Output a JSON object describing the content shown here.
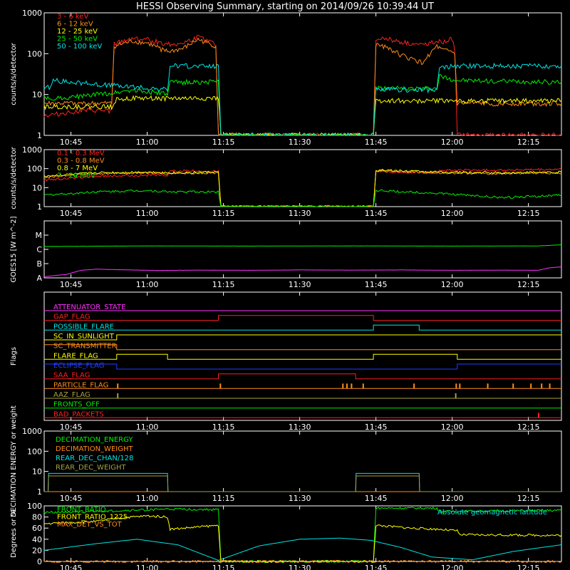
{
  "title": "HESSI Observing Summary, starting on 2014/09/26 10:39:44 UT",
  "time_ticks": [
    "10:45",
    "11:00",
    "11:15",
    "11:30",
    "11:45",
    "12:00",
    "12:15"
  ],
  "time_tick_minutes": [
    45,
    60,
    75,
    90,
    105,
    120,
    135
  ],
  "x_range_minutes": [
    39.73,
    141.5
  ],
  "colors": {
    "red": "#ff2020",
    "orange": "#ff8c1a",
    "yellow": "#ffff00",
    "green": "#00ee00",
    "cyan": "#00e5e5",
    "magenta": "#ff30ff",
    "blue": "#2040ff",
    "olive": "#a8a040",
    "white": "#ffffff"
  },
  "chart_data": [
    {
      "type": "line",
      "panel": "count_rates_low",
      "ylabel": "counts/s/detector",
      "y_scale": "log",
      "ylim": [
        1,
        1000
      ],
      "y_ticks": [
        "1",
        "10",
        "100",
        "1000"
      ],
      "legend_placement": "top-left",
      "series": [
        {
          "name": "3 - 6 keV",
          "color": "#ff2020",
          "x": [
            39.7,
            47,
            53,
            53.5,
            57,
            60,
            64,
            67,
            70,
            73.5,
            74,
            104.5,
            105,
            107,
            110,
            114,
            117,
            118,
            120,
            120.5,
            121,
            141.5
          ],
          "y": [
            3,
            4,
            4,
            170,
            240,
            220,
            170,
            180,
            250,
            170,
            1,
            1,
            220,
            240,
            190,
            160,
            210,
            180,
            230,
            120,
            1,
            1
          ]
        },
        {
          "name": "6 - 12 keV",
          "color": "#ff8c1a",
          "x": [
            39.7,
            47,
            53,
            53.5,
            57,
            60,
            64,
            67,
            70,
            73.5,
            74,
            104.5,
            105,
            107,
            110,
            114,
            117,
            118,
            120,
            120.5,
            121,
            141.5
          ],
          "y": [
            6,
            6,
            6,
            150,
            200,
            180,
            110,
            130,
            220,
            150,
            1,
            1,
            160,
            150,
            90,
            60,
            150,
            120,
            110,
            100,
            6,
            6
          ]
        },
        {
          "name": "12 - 25 keV",
          "color": "#ffff00",
          "x": [
            39.7,
            53,
            54,
            64,
            74,
            74.5,
            104.5,
            105,
            118,
            121,
            141.5
          ],
          "y": [
            5,
            5,
            8,
            8,
            8,
            1,
            1,
            7,
            7,
            7,
            7
          ]
        },
        {
          "name": "25 - 50 keV",
          "color": "#00ee00",
          "x": [
            39.7,
            47,
            53,
            57,
            62,
            64,
            64.5,
            74,
            74.5,
            104.5,
            105,
            112,
            117,
            117.5,
            121,
            141.5
          ],
          "y": [
            8,
            9,
            11,
            13,
            11,
            10,
            20,
            20,
            1,
            1,
            14,
            14,
            14,
            28,
            22,
            20
          ]
        },
        {
          "name": "50 - 100 keV",
          "color": "#00e5e5",
          "x": [
            39.7,
            41,
            41.5,
            64,
            64.5,
            74,
            74.5,
            104.5,
            105,
            117,
            117.5,
            121,
            141.5
          ],
          "y": [
            15,
            15,
            22,
            13,
            50,
            50,
            1,
            1,
            13,
            13,
            45,
            50,
            50
          ]
        }
      ]
    },
    {
      "type": "line",
      "panel": "count_rates_high",
      "ylabel": "counts/s/detector",
      "y_scale": "log",
      "ylim": [
        1,
        1000
      ],
      "y_ticks": [
        "1",
        "10",
        "100",
        "1000"
      ],
      "legend_placement": "top-left",
      "series": [
        {
          "name": "0.1 - 0.3 MeV",
          "color": "#ff2020",
          "x": [
            39.7,
            50,
            60,
            64,
            64.5,
            74,
            74.5,
            104.5,
            105,
            117,
            117.5,
            130,
            141.5
          ],
          "y": [
            25,
            40,
            45,
            45,
            75,
            75,
            1,
            1,
            70,
            60,
            80,
            85,
            90
          ]
        },
        {
          "name": "0.3 - 0.8 MeV",
          "color": "#ff8c1a",
          "x": [
            39.7,
            50,
            60,
            64,
            74,
            74.5,
            104.5,
            105,
            117,
            130,
            141.5
          ],
          "y": [
            35,
            55,
            60,
            55,
            60,
            1,
            1,
            80,
            60,
            55,
            60
          ]
        },
        {
          "name": "0.8 - 7 MeV",
          "color": "#ffff00",
          "x": [
            39.7,
            50,
            60,
            64,
            74,
            74.5,
            104.5,
            105,
            117,
            130,
            141.5
          ],
          "y": [
            40,
            60,
            65,
            60,
            65,
            1,
            1,
            85,
            65,
            60,
            65
          ]
        },
        {
          "name": "7 - 20 MeV",
          "color": "#00ee00",
          "x": [
            39.7,
            50,
            60,
            64,
            74,
            74.5,
            104.5,
            105,
            117,
            130,
            141.5
          ],
          "y": [
            4,
            6,
            7,
            6,
            6,
            1,
            1,
            7,
            5,
            3,
            4
          ]
        }
      ]
    },
    {
      "type": "line",
      "panel": "goes",
      "ylabel": "GOES15 [W m^-2]",
      "y_scale": "log",
      "ylim": [
        1e-08,
        0.0001
      ],
      "y_ticks": [
        "A",
        "B",
        "C",
        "M"
      ],
      "series": [
        {
          "name": "",
          "color": "#00ee00",
          "x": [
            39.7,
            60,
            80,
            100,
            120,
            137,
            141.5
          ],
          "y": [
            1.6e-06,
            1.75e-06,
            1.7e-06,
            1.75e-06,
            1.7e-06,
            1.75e-06,
            2.1e-06
          ]
        },
        {
          "name": "",
          "color": "#ff30ff",
          "x": [
            39.7,
            42,
            44,
            47,
            50,
            55,
            62,
            70,
            80,
            90,
            100,
            110,
            120,
            130,
            137,
            139,
            141.5
          ],
          "y": [
            1.2e-08,
            1.5e-08,
            1.7e-08,
            3.4e-08,
            4.1e-08,
            3.7e-08,
            3.3e-08,
            3.5e-08,
            3.4e-08,
            3.6e-08,
            3.5e-08,
            3.6e-08,
            3.4e-08,
            3.5e-08,
            3.4e-08,
            5e-08,
            6e-08
          ]
        }
      ]
    },
    {
      "type": "line",
      "panel": "flags",
      "ylabel": "Flags",
      "flags": [
        {
          "name": "ATTENUATOR_STATE",
          "color": "#ff30ff",
          "segments": [
            [
              39.7,
              141.5,
              0
            ]
          ]
        },
        {
          "name": "GAP_FLAG",
          "color": "#ff2020",
          "segments": [
            [
              39.7,
              74,
              0
            ],
            [
              74,
              104.5,
              1
            ],
            [
              104.5,
              141.5,
              0
            ]
          ]
        },
        {
          "name": "POSSIBLE_FLARE",
          "color": "#00e5e5",
          "segments": [
            [
              39.7,
              104.5,
              0
            ],
            [
              104.5,
              113.5,
              1
            ],
            [
              113.5,
              141.5,
              0
            ]
          ]
        },
        {
          "name": "SC_IN_SUNLIGHT",
          "color": "#ffff00",
          "segments": [
            [
              39.7,
              54,
              0
            ],
            [
              54,
              141.5,
              1
            ]
          ]
        },
        {
          "name": "SC_TRANSMITTER",
          "color": "#ff8c1a",
          "segments": [
            [
              39.7,
              54,
              1
            ],
            [
              54,
              141.5,
              0
            ]
          ]
        },
        {
          "name": "FLARE_FLAG",
          "color": "#ffff00",
          "segments": [
            [
              39.7,
              54,
              0
            ],
            [
              54,
              64,
              1
            ],
            [
              64,
              104.5,
              0
            ],
            [
              104.5,
              121,
              1
            ],
            [
              121,
              141.5,
              0
            ]
          ]
        },
        {
          "name": "ECLIPSE_FLAG",
          "color": "#2040ff",
          "segments": [
            [
              39.7,
              54,
              1
            ],
            [
              54,
              121,
              0
            ],
            [
              121,
              141.5,
              1
            ]
          ]
        },
        {
          "name": "SAA_FLAG",
          "color": "#ff2020",
          "segments": [
            [
              39.7,
              74,
              0
            ],
            [
              74,
              101,
              1
            ],
            [
              101,
              141.5,
              0
            ]
          ]
        },
        {
          "name": "PARTICLE_FLAG",
          "color": "#ff8c1a",
          "segments": [
            [
              39.7,
              141.5,
              0
            ]
          ],
          "spikes": [
            54.2,
            74.4,
            98.5,
            99.3,
            100.2,
            102.5,
            112.5,
            120.8,
            121.5,
            127,
            132,
            135.5,
            137.6,
            139.2
          ]
        },
        {
          "name": "AAZ_FLAG",
          "color": "#a8a040",
          "segments": [
            [
              39.7,
              141.5,
              0
            ]
          ],
          "spikes": [
            54.2,
            120.7
          ]
        },
        {
          "name": "FRONTS_OFF",
          "color": "#00ee00",
          "segments": [
            [
              39.7,
              141.5,
              0
            ]
          ]
        },
        {
          "name": "BAD_PACKETS",
          "color": "#ff2020",
          "segments": [
            [
              39.7,
              141.5,
              0
            ]
          ],
          "spikes": [
            137
          ]
        }
      ]
    },
    {
      "type": "line",
      "panel": "decimation",
      "ylabel": "DECIMATION ENERGY or weight",
      "y_scale": "log",
      "ylim": [
        1,
        1000
      ],
      "y_ticks": [
        "1",
        "10",
        "100",
        "1000"
      ],
      "legend_placement": "top-left",
      "series": [
        {
          "name": "DECIMATION_ENERGY",
          "color": "#00ee00",
          "x": [
            39.7,
            141.5
          ],
          "y": [
            1,
            1
          ]
        },
        {
          "name": "DECIMATION_WEIGHT",
          "color": "#ff8c1a",
          "x": [
            39.7,
            141.5
          ],
          "y": [
            1,
            1
          ]
        },
        {
          "name": "REAR_DEC_CHAN/128",
          "color": "#00e5e5",
          "x": [
            39.7,
            40.5,
            40.6,
            64,
            64.1,
            101,
            101.1,
            113.5,
            113.6,
            141.5
          ],
          "y": [
            1,
            1,
            8,
            8,
            1,
            1,
            8,
            8,
            1,
            1
          ]
        },
        {
          "name": "REAR_DEC_WEIGHT",
          "color": "#a8a040",
          "x": [
            39.7,
            40.5,
            40.6,
            64,
            64.1,
            101,
            101.1,
            113.5,
            113.6,
            141.5
          ],
          "y": [
            1,
            1,
            6,
            6,
            1,
            1,
            6,
            6,
            1,
            1
          ]
        }
      ]
    },
    {
      "type": "line",
      "panel": "ratios",
      "ylabel": "Degrees or %",
      "ylim": [
        0,
        100
      ],
      "y_ticks": [
        "0",
        "20",
        "40",
        "60",
        "80",
        "100"
      ],
      "legend_placement": "top-left",
      "annotations": [
        "Absolute geomagnetic latitude"
      ],
      "series": [
        {
          "name": "FRONT_RATIO",
          "color": "#00ee00",
          "x": [
            39.7,
            50,
            64,
            64.5,
            74,
            74.5,
            104.5,
            105,
            117,
            117.5,
            141.5
          ],
          "y": [
            88,
            90,
            94,
            94,
            93,
            0,
            0,
            96,
            96,
            90,
            92
          ]
        },
        {
          "name": "FRONT_RATIO_1225",
          "color": "#ffff00",
          "x": [
            39.7,
            50,
            54,
            60,
            64,
            64.5,
            74,
            74.5,
            104.5,
            105,
            112,
            117,
            117.5,
            121,
            121.5,
            141.5
          ],
          "y": [
            68,
            72,
            78,
            82,
            80,
            58,
            65,
            0,
            0,
            65,
            60,
            58,
            58,
            55,
            48,
            47
          ]
        },
        {
          "name": "MAX_DET_VS_TOT",
          "color": "#ff8c1a",
          "x": [
            39.7,
            141.5
          ],
          "y": [
            0,
            0
          ]
        },
        {
          "name": "Absolute geomagnetic latitude",
          "color": "#00e5e5",
          "x": [
            39.7,
            50,
            58,
            66,
            74,
            82,
            90,
            98,
            104,
            110,
            116,
            124,
            132,
            141.5
          ],
          "y": [
            20,
            32,
            40,
            30,
            2,
            28,
            40,
            42,
            38,
            25,
            8,
            3,
            18,
            30
          ]
        }
      ]
    }
  ]
}
